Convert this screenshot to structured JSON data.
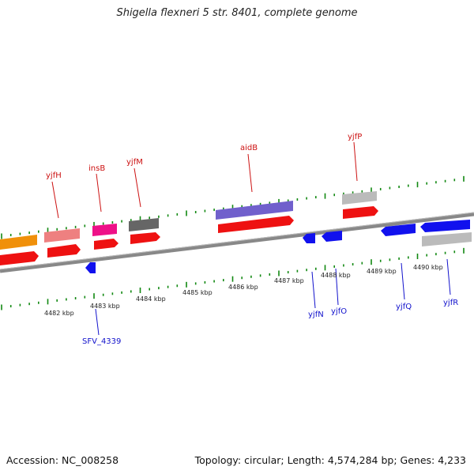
{
  "title": "Shigella flexneri 5 str. 8401, complete genome",
  "footer": {
    "accession": "Accession: NC_008258",
    "summary": "Topology: circular; Length: 4,574,284 bp; Genes: 4,233"
  },
  "colors": {
    "backbone": "#888888",
    "tick": "#118811",
    "forward_label": "#cc1111",
    "reverse_label": "#1111cc",
    "cds_forward": "#ee1111",
    "cds_reverse": "#1111ee"
  },
  "scale_labels": [
    "4482 kbp",
    "4483 kbp",
    "4484 kbp",
    "4485 kbp",
    "4486 kbp",
    "4487 kbp",
    "4488 kbp",
    "4489 kbp",
    "4490 kbp"
  ],
  "forward_gene_labels": [
    "yjfH",
    "insB",
    "yjfM",
    "aidB",
    "yjfP"
  ],
  "reverse_gene_labels": [
    "SFV_4339",
    "yjfN",
    "yjfO",
    "yjfQ",
    "yjfR"
  ]
}
